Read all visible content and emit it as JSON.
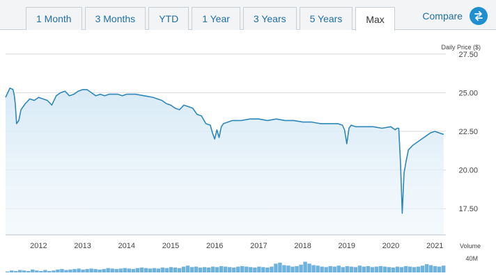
{
  "tabs": [
    {
      "label": "1 Month",
      "active": false
    },
    {
      "label": "3 Months",
      "active": false
    },
    {
      "label": "YTD",
      "active": false
    },
    {
      "label": "1 Year",
      "active": false
    },
    {
      "label": "3 Years",
      "active": false
    },
    {
      "label": "5 Years",
      "active": false
    },
    {
      "label": "Max",
      "active": true
    }
  ],
  "compare": {
    "label": "Compare",
    "icon": "swap-arrows-icon"
  },
  "colors": {
    "line": "#2f86b8",
    "area_top": "#d6e9f6",
    "volume": "#6fb3dc",
    "accent": "#1f8fcf"
  },
  "chart_data": {
    "type": "line",
    "ylabel": "Daily Price ($)",
    "y_ticks": [
      "27.50",
      "25.00",
      "22.50",
      "20.00",
      "17.50"
    ],
    "ylim": [
      15.8,
      28.3
    ],
    "x_ticks": [
      "2012",
      "2013",
      "2014",
      "2015",
      "2016",
      "2017",
      "2018",
      "2019",
      "2020",
      "2021"
    ],
    "xlim": [
      2011.25,
      2021.25
    ],
    "grid": true,
    "series": [
      {
        "x": [
          2011.25,
          2011.35,
          2011.42,
          2011.45,
          2011.47,
          2011.5,
          2011.55,
          2011.6,
          2011.7,
          2011.8,
          2011.9,
          2012.0,
          2012.1,
          2012.2,
          2012.3,
          2012.4,
          2012.5,
          2012.6,
          2012.7,
          2012.8,
          2012.9,
          2013.0,
          2013.1,
          2013.2,
          2013.3,
          2013.4,
          2013.5,
          2013.6,
          2013.7,
          2013.8,
          2013.9,
          2014.0,
          2014.2,
          2014.4,
          2014.6,
          2014.8,
          2014.9,
          2015.0,
          2015.1,
          2015.2,
          2015.3,
          2015.4,
          2015.5,
          2015.6,
          2015.7,
          2015.8,
          2015.9,
          2015.95,
          2016.0,
          2016.05,
          2016.1,
          2016.15,
          2016.2,
          2016.3,
          2016.4,
          2016.6,
          2016.8,
          2017.0,
          2017.2,
          2017.4,
          2017.6,
          2017.8,
          2018.0,
          2018.2,
          2018.4,
          2018.6,
          2018.8,
          2018.9,
          2018.95,
          2019.0,
          2019.05,
          2019.1,
          2019.2,
          2019.4,
          2019.6,
          2019.8,
          2020.0,
          2020.1,
          2020.14,
          2020.18,
          2020.22,
          2020.26,
          2020.3,
          2020.35,
          2020.4,
          2020.5,
          2020.6,
          2020.7,
          2020.8,
          2020.9,
          2021.0,
          2021.1,
          2021.2
        ],
        "y": [
          24.7,
          25.3,
          25.2,
          24.8,
          24.3,
          23.0,
          23.2,
          23.9,
          24.3,
          24.6,
          24.5,
          24.7,
          24.6,
          24.5,
          24.2,
          24.8,
          25.0,
          25.1,
          24.8,
          24.9,
          25.1,
          25.2,
          25.2,
          25.0,
          24.8,
          24.9,
          24.8,
          24.9,
          24.9,
          24.9,
          24.8,
          24.9,
          24.9,
          24.8,
          24.7,
          24.5,
          24.3,
          24.2,
          24.0,
          23.9,
          24.2,
          24.1,
          24.0,
          23.6,
          23.5,
          23.0,
          22.9,
          22.4,
          22.0,
          22.6,
          22.1,
          22.8,
          23.0,
          23.1,
          23.2,
          23.2,
          23.3,
          23.3,
          23.2,
          23.3,
          23.2,
          23.2,
          23.1,
          23.1,
          23.0,
          23.0,
          23.0,
          22.9,
          22.6,
          21.7,
          22.7,
          22.9,
          22.8,
          22.8,
          22.8,
          22.7,
          22.8,
          22.6,
          22.7,
          22.7,
          20.5,
          17.2,
          19.8,
          20.6,
          21.3,
          21.6,
          21.8,
          22.0,
          22.2,
          22.4,
          22.5,
          22.4,
          22.3
        ]
      }
    ],
    "volume": {
      "label": "Volume",
      "max_label": "40M",
      "values": [
        2,
        4,
        3,
        5,
        4,
        3,
        6,
        4,
        3,
        5,
        3,
        4,
        6,
        7,
        5,
        6,
        7,
        8,
        6,
        7,
        8,
        7,
        6,
        7,
        9,
        8,
        7,
        8,
        9,
        8,
        7,
        9,
        10,
        9,
        8,
        9,
        8,
        10,
        9,
        11,
        10,
        9,
        12,
        14,
        11,
        12,
        10,
        11,
        10,
        12,
        11,
        13,
        12,
        11,
        10,
        12,
        13,
        12,
        11,
        10,
        12,
        11,
        10,
        12,
        18,
        20,
        15,
        14,
        12,
        13,
        16,
        22,
        18,
        15,
        14,
        12,
        11,
        13,
        12,
        14,
        11,
        13,
        12,
        11,
        14,
        12,
        13,
        11,
        12,
        13,
        12,
        11,
        10,
        12,
        11,
        13,
        12,
        11,
        12,
        14,
        17,
        15,
        13,
        12,
        14
      ]
    }
  }
}
